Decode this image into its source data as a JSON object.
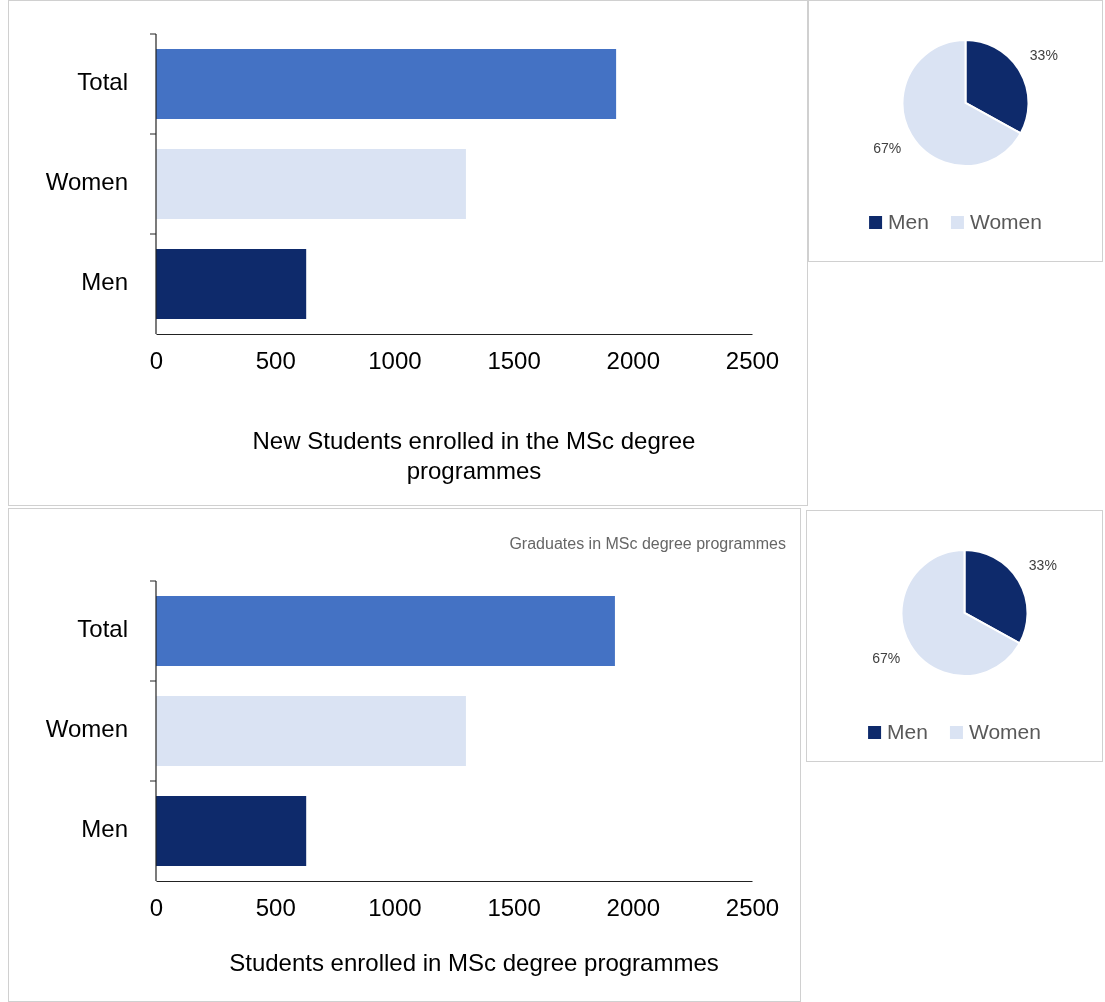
{
  "chart_data": [
    {
      "type": "bar",
      "orientation": "horizontal",
      "categories": [
        "Total",
        "Women",
        "Men"
      ],
      "values": [
        1930,
        1300,
        630
      ],
      "colors": [
        "#4472c4",
        "#dae3f3",
        "#0e2a6b"
      ],
      "xlim": [
        0,
        2500
      ],
      "xticks": [
        0,
        500,
        1000,
        1500,
        2000,
        2500
      ],
      "xlabel": "New Students enrolled in the MSc degree programmes",
      "grid": false
    },
    {
      "type": "pie",
      "categories": [
        "Men",
        "Women"
      ],
      "values": [
        33,
        67
      ],
      "colors": [
        "#0e2a6b",
        "#dae3f3"
      ],
      "value_labels": [
        "33%",
        "67%"
      ],
      "legend": "bottom"
    },
    {
      "type": "bar",
      "orientation": "horizontal",
      "title": "Graduates in MSc degree programmes",
      "categories": [
        "Total",
        "Women",
        "Men"
      ],
      "values": [
        1925,
        1300,
        630
      ],
      "colors": [
        "#4472c4",
        "#dae3f3",
        "#0e2a6b"
      ],
      "xlim": [
        0,
        2500
      ],
      "xticks": [
        0,
        500,
        1000,
        1500,
        2000,
        2500
      ],
      "xlabel": "Students enrolled in MSc degree programmes",
      "grid": false
    },
    {
      "type": "pie",
      "categories": [
        "Men",
        "Women"
      ],
      "values": [
        33,
        67
      ],
      "colors": [
        "#0e2a6b",
        "#dae3f3"
      ],
      "value_labels": [
        "33%",
        "67%"
      ],
      "legend": "bottom"
    }
  ]
}
